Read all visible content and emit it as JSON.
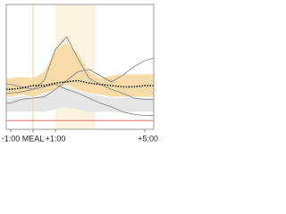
{
  "chart_data": {
    "type": "line",
    "x": [
      -1.2,
      -1,
      -0.5,
      0,
      0.5,
      1,
      1.5,
      2,
      2.5,
      3,
      3.5,
      4,
      4.5,
      5,
      5.4
    ],
    "xlim": [
      -1.2,
      5.4
    ],
    "xticks": [
      {
        "value": -1,
        "label": "-1:00"
      },
      {
        "value": 0,
        "label": "MEAL"
      },
      {
        "value": 1,
        "label": "+1:00"
      },
      {
        "value": 5,
        "label": "+5:00"
      }
    ],
    "ylim": [
      0,
      100
    ],
    "marker_color": "#f3d98a",
    "shade": {
      "range": [
        1,
        2.8
      ],
      "color": "#fbf3e0"
    },
    "bands": [
      {
        "color": "#f7dba8",
        "high": [
          41,
          41,
          42,
          41,
          46,
          64,
          69,
          61,
          46,
          41,
          43,
          44,
          44,
          44,
          44
        ],
        "low": [
          26,
          26,
          28,
          26,
          29,
          32,
          36,
          32,
          29,
          28,
          26,
          26,
          26,
          26,
          26
        ]
      },
      {
        "color": "#e6e6e6",
        "high": [
          25,
          25,
          27,
          25,
          28,
          31,
          35,
          31,
          28,
          27,
          25,
          25,
          25,
          25,
          25
        ],
        "low": [
          14,
          14,
          14,
          14,
          14,
          16,
          18,
          16,
          14,
          14,
          14,
          14,
          14,
          14,
          14
        ]
      }
    ],
    "series": [
      {
        "color": "#d9534f",
        "values": [
          7,
          7,
          7,
          7,
          7,
          7,
          7,
          7,
          7,
          7,
          7,
          7,
          7,
          7,
          7
        ]
      },
      {
        "color": "#8a8a8a",
        "values": [
          29,
          29,
          30,
          32,
          39,
          64,
          74,
          57,
          41,
          36,
          32,
          29,
          25,
          24,
          24
        ]
      },
      {
        "color": "#8a8a8a",
        "values": [
          21,
          21,
          24,
          25,
          26,
          32,
          39,
          46,
          48,
          43,
          38,
          43,
          50,
          55,
          57
        ]
      },
      {
        "color": "#8a8a8a",
        "values": [
          36,
          36,
          34,
          32,
          34,
          36,
          32,
          29,
          25,
          21,
          18,
          14,
          12,
          11,
          11
        ]
      },
      {
        "color": "#111111",
        "dashed": true,
        "values": [
          32,
          32,
          33,
          35,
          35,
          37,
          38,
          39,
          37,
          36,
          35,
          34,
          34,
          35,
          35
        ]
      }
    ]
  }
}
